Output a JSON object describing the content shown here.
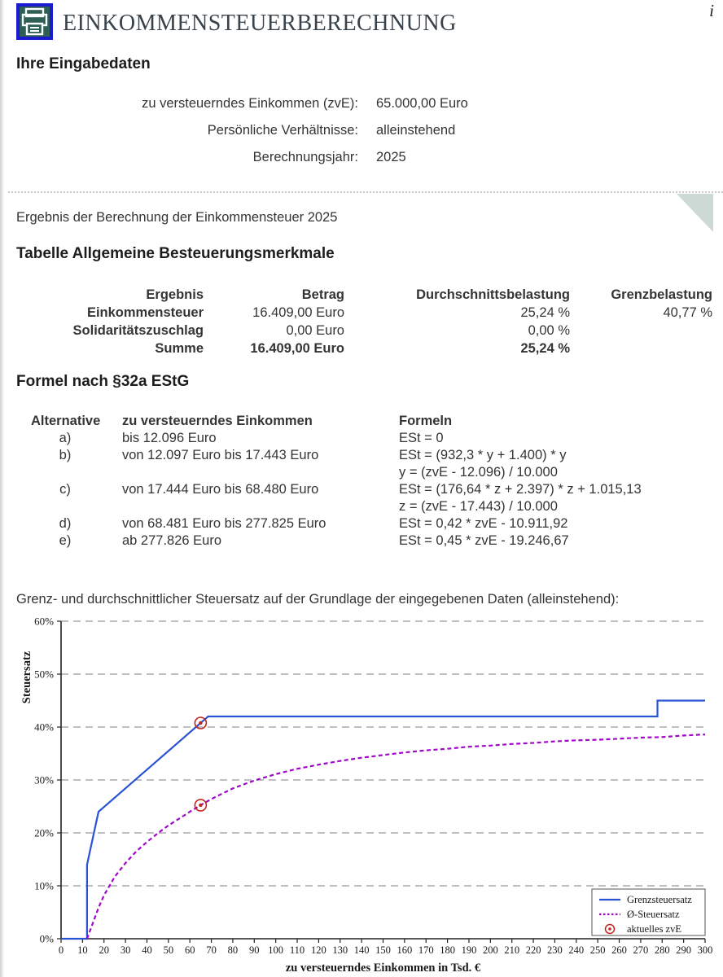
{
  "header": {
    "title": "EINKOMMENSTEUERBERECHNUNG",
    "icon": "printer-icon"
  },
  "input_section": {
    "heading": "Ihre Eingabedaten",
    "rows": [
      {
        "label": "zu versteuerndes Einkommen (zvE):",
        "value": "65.000,00 Euro"
      },
      {
        "label": "Persönliche Verhältnisse:",
        "value": "alleinstehend"
      },
      {
        "label": "Berechnungsjahr:",
        "value": "2025"
      }
    ]
  },
  "result_section": {
    "intro": "Ergebnis der Berechnung der Einkommensteuer 2025",
    "info_icon_glyph": "i",
    "table_heading": "Tabelle Allgemeine Besteuerungsmerkmale",
    "table": {
      "headers": [
        "Ergebnis",
        "Betrag",
        "Durchschnittsbelastung",
        "Grenzbelastung"
      ],
      "rows": [
        {
          "label": "Einkommensteuer",
          "betrag": "16.409,00 Euro",
          "durchschnitt": "25,24 %",
          "grenz": "40,77 %"
        },
        {
          "label": "Solidaritätszuschlag",
          "betrag": "0,00 Euro",
          "durchschnitt": "0,00 %",
          "grenz": ""
        },
        {
          "label": "Summe",
          "betrag": "16.409,00 Euro",
          "durchschnitt": "25,24 %",
          "grenz": ""
        }
      ]
    }
  },
  "formula_section": {
    "heading": "Formel nach §32a EStG",
    "headers": {
      "alt": "Alternative",
      "range": "zu versteuerndes Einkommen",
      "formulas": "Formeln"
    },
    "rows": [
      {
        "alt": "a)",
        "range": "bis 12.096 Euro",
        "f1": "ESt = 0",
        "f2": ""
      },
      {
        "alt": "b)",
        "range": "von 12.097 Euro bis 17.443 Euro",
        "f1": "ESt = (932,3 * y + 1.400) * y",
        "f2": "y = (zvE - 12.096) / 10.000"
      },
      {
        "alt": "c)",
        "range": "von 17.444 Euro bis 68.480 Euro",
        "f1": "ESt = (176,64 * z + 2.397) * z + 1.015,13",
        "f2": "z = (zvE - 17.443) / 10.000"
      },
      {
        "alt": "d)",
        "range": "von 68.481 Euro bis 277.825 Euro",
        "f1": "ESt = 0,42 * zvE - 10.911,92",
        "f2": ""
      },
      {
        "alt": "e)",
        "range": "ab 277.826 Euro",
        "f1": "ESt = 0,45 * zvE - 19.246,67",
        "f2": ""
      }
    ]
  },
  "chart_section": {
    "caption": "Grenz- und durchschnittlicher Steuersatz auf der Grundlage der eingegebenen Daten (alleinstehend):"
  },
  "chart_data": {
    "type": "line",
    "xlabel": "zu versteuerndes Einkommen in Tsd. €",
    "ylabel": "Steuersatz",
    "xlim": [
      0,
      300
    ],
    "ylim": [
      0,
      60
    ],
    "x_tick_step": 10,
    "y_ticks": [
      "0%",
      "10%",
      "20%",
      "30%",
      "40%",
      "50%",
      "60%"
    ],
    "grid": "dashed-horizontal",
    "legend_position": "bottom-right",
    "axis_color": "#222222",
    "grid_color": "#999999",
    "series": [
      {
        "name": "Grenzsteuersatz",
        "color": "#2853d4",
        "style": "solid",
        "points": [
          [
            0,
            0
          ],
          [
            12.096,
            0
          ],
          [
            12.097,
            14
          ],
          [
            17.443,
            24
          ],
          [
            68.48,
            42
          ],
          [
            277.825,
            42
          ],
          [
            277.826,
            45
          ],
          [
            300,
            45
          ]
        ]
      },
      {
        "name": "Ø-Steuersatz",
        "color": "#a008c8",
        "style": "dashed",
        "points": [
          [
            12.1,
            0
          ],
          [
            13,
            1.0
          ],
          [
            15,
            3.2
          ],
          [
            17.4,
            5.8
          ],
          [
            20,
            8.2
          ],
          [
            25,
            11.7
          ],
          [
            30,
            14.3
          ],
          [
            35,
            16.5
          ],
          [
            40,
            18.3
          ],
          [
            45,
            19.9
          ],
          [
            50,
            21.4
          ],
          [
            55,
            22.7
          ],
          [
            60,
            24.0
          ],
          [
            65,
            25.24
          ],
          [
            70,
            26.4
          ],
          [
            80,
            28.4
          ],
          [
            90,
            29.9
          ],
          [
            100,
            31.1
          ],
          [
            110,
            32.1
          ],
          [
            120,
            32.9
          ],
          [
            130,
            33.6
          ],
          [
            140,
            34.2
          ],
          [
            150,
            34.7
          ],
          [
            160,
            35.2
          ],
          [
            170,
            35.6
          ],
          [
            180,
            35.9
          ],
          [
            190,
            36.3
          ],
          [
            200,
            36.5
          ],
          [
            210,
            36.8
          ],
          [
            220,
            37.0
          ],
          [
            230,
            37.3
          ],
          [
            240,
            37.5
          ],
          [
            250,
            37.6
          ],
          [
            260,
            37.8
          ],
          [
            270,
            38.0
          ],
          [
            280,
            38.1
          ],
          [
            290,
            38.4
          ],
          [
            300,
            38.6
          ]
        ]
      }
    ],
    "markers": {
      "name": "aktuelles zvE",
      "color": "#c42222",
      "points": [
        [
          65,
          40.77
        ],
        [
          65,
          25.24
        ]
      ]
    }
  }
}
